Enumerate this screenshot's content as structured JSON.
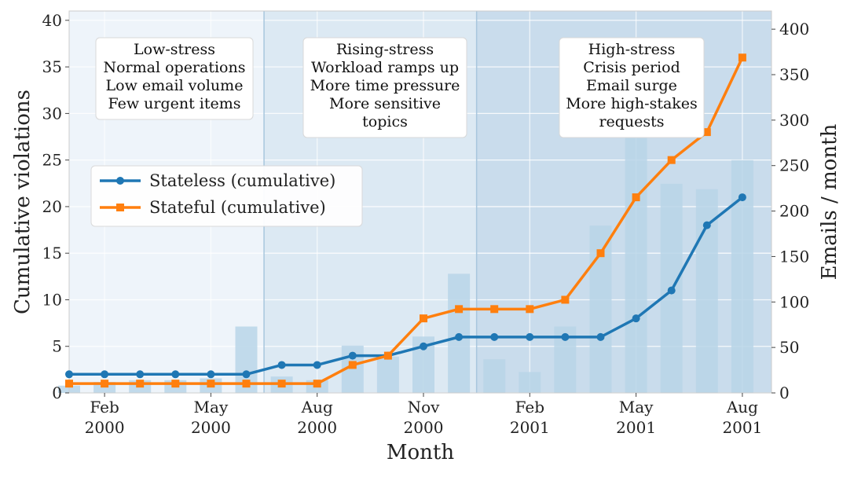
{
  "chart_data": {
    "type": "line",
    "title": "",
    "xlabel": "Month",
    "ylabel": "Cumulative violations",
    "ylabel_right": "Emails / month",
    "ylim": [
      0,
      41
    ],
    "ylim_right": [
      0,
      420
    ],
    "yticks": [
      0,
      5,
      10,
      15,
      20,
      25,
      30,
      35,
      40
    ],
    "yticks_right": [
      0,
      50,
      100,
      150,
      200,
      250,
      300,
      350,
      400
    ],
    "x": [
      "2000-01",
      "2000-02",
      "2000-03",
      "2000-04",
      "2000-05",
      "2000-06",
      "2000-07",
      "2000-08",
      "2000-09",
      "2000-10",
      "2000-11",
      "2000-12",
      "2001-01",
      "2001-02",
      "2001-03",
      "2001-04",
      "2001-05",
      "2001-06",
      "2001-07",
      "2001-08"
    ],
    "xtick_labels": [
      {
        "month": "2000-02",
        "line1": "Feb",
        "line2": "2000"
      },
      {
        "month": "2000-05",
        "line1": "May",
        "line2": "2000"
      },
      {
        "month": "2000-08",
        "line1": "Aug",
        "line2": "2000"
      },
      {
        "month": "2000-11",
        "line1": "Nov",
        "line2": "2000"
      },
      {
        "month": "2001-02",
        "line1": "Feb",
        "line2": "2001"
      },
      {
        "month": "2001-05",
        "line1": "May",
        "line2": "2001"
      },
      {
        "month": "2001-08",
        "line1": "Aug",
        "line2": "2001"
      }
    ],
    "series": [
      {
        "name": "Stateless (cumulative)",
        "color": "#1f77b4",
        "marker": "circle",
        "values": [
          2,
          2,
          2,
          2,
          2,
          2,
          3,
          3,
          4,
          4,
          5,
          6,
          6,
          6,
          6,
          6,
          8,
          11,
          18,
          21
        ]
      },
      {
        "name": "Stateful (cumulative)",
        "color": "#ff7f0e",
        "marker": "square",
        "values": [
          1,
          1,
          1,
          1,
          1,
          1,
          1,
          1,
          3,
          4,
          8,
          9,
          9,
          9,
          10,
          15,
          21,
          25,
          28,
          36
        ]
      }
    ],
    "bars": {
      "axis": "right",
      "color": "#b9d5e8",
      "values": [
        8,
        12,
        14,
        14,
        16,
        73,
        18,
        14,
        52,
        40,
        62,
        131,
        37,
        23,
        73,
        184,
        366,
        230,
        224,
        256
      ]
    },
    "phases": [
      {
        "name": "Low-stress",
        "start": "2000-01",
        "end": "2000-07",
        "color": "#eef4fa",
        "lines": [
          "Low-stress",
          "Normal operations",
          "Low email volume",
          "Few urgent items"
        ]
      },
      {
        "name": "Rising-stress",
        "start": "2000-07",
        "end": "2001-01",
        "color": "#dce9f3",
        "lines": [
          "Rising-stress",
          "Workload ramps up",
          "More time pressure",
          "More sensitive",
          "topics"
        ]
      },
      {
        "name": "High-stress",
        "start": "2001-01",
        "end": "2001-08",
        "color": "#c9dcec",
        "lines": [
          "High-stress",
          "Crisis period",
          "Email surge",
          "More high-stakes",
          "requests"
        ]
      }
    ],
    "legend_position": "center-left",
    "grid": true
  }
}
